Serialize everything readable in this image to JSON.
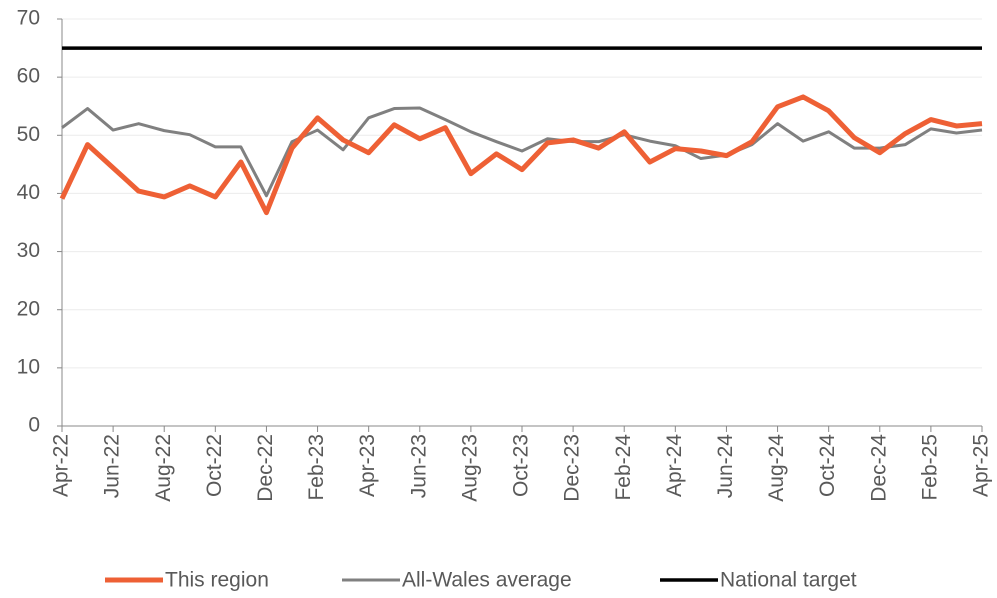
{
  "chart_data": {
    "type": "line",
    "categories": [
      "Apr-22",
      null,
      "Jun-22",
      null,
      "Aug-22",
      null,
      "Oct-22",
      null,
      "Dec-22",
      null,
      "Feb-23",
      null,
      "Apr-23",
      null,
      "Jun-23",
      null,
      "Aug-23",
      null,
      "Oct-23",
      null,
      "Dec-23",
      null,
      "Feb-24",
      null,
      "Apr-24",
      null,
      "Jun-24",
      null,
      "Aug-24",
      null,
      "Oct-24",
      null,
      "Dec-24",
      null,
      "Feb-25",
      null,
      "Apr-25"
    ],
    "series": [
      {
        "name": "This region",
        "color": "#ee6035",
        "values": [
          39.1,
          48.4,
          44.4,
          40.4,
          39.4,
          41.3,
          39.4,
          45.4,
          36.7,
          47.8,
          53.0,
          49.2,
          47.0,
          51.8,
          49.4,
          51.3,
          43.4,
          46.8,
          44.1,
          48.7,
          49.2,
          47.8,
          50.6,
          45.4,
          47.7,
          47.3,
          46.5,
          48.9,
          54.9,
          56.6,
          54.2,
          49.6,
          47.0,
          50.3,
          52.7,
          51.6,
          52.0
        ]
      },
      {
        "name": "All-Wales average",
        "color": "#808080",
        "values": [
          51.3,
          54.6,
          50.9,
          52.0,
          50.8,
          50.1,
          48.0,
          48.0,
          39.6,
          48.9,
          50.9,
          47.5,
          53.0,
          54.6,
          54.7,
          52.7,
          50.6,
          48.9,
          47.3,
          49.4,
          48.9,
          48.9,
          50.1,
          49.0,
          48.2,
          46.0,
          46.6,
          48.4,
          52.0,
          49.0,
          50.6,
          47.8,
          47.8,
          48.4,
          51.1,
          50.4,
          50.9
        ]
      },
      {
        "name": "National target",
        "color": "#000000",
        "values": [
          65,
          65,
          65,
          65,
          65,
          65,
          65,
          65,
          65,
          65,
          65,
          65,
          65,
          65,
          65,
          65,
          65,
          65,
          65,
          65,
          65,
          65,
          65,
          65,
          65,
          65,
          65,
          65,
          65,
          65,
          65,
          65,
          65,
          65,
          65,
          65,
          65
        ]
      }
    ],
    "ylim": [
      0,
      70
    ],
    "yticks": [
      0,
      10,
      20,
      30,
      40,
      50,
      60,
      70
    ],
    "grid": true,
    "legend": "bottom"
  }
}
